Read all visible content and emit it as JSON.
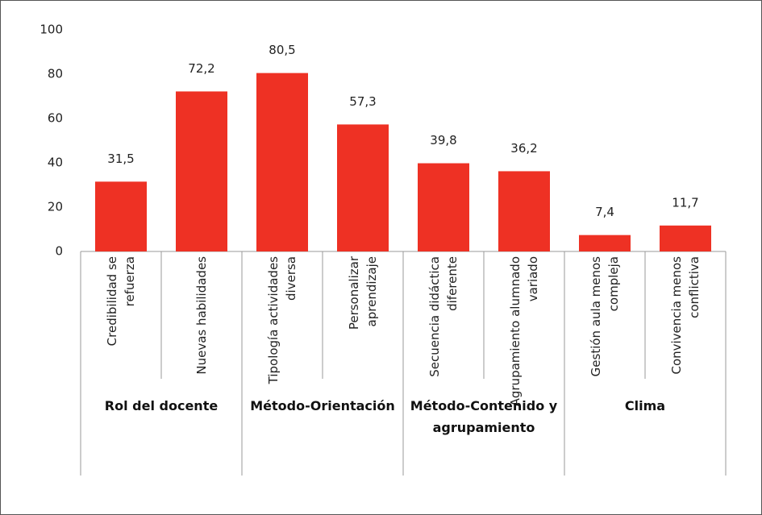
{
  "chart_data": {
    "type": "bar",
    "categories": [
      "Credibilidad se\nrefuerza",
      "Nuevas habilidades",
      "Tipología actividades\ndiversa",
      "Personalizar\naprendizaje",
      "Secuencia didáctica\ndiferente",
      "Agrupamiento alumnado\nvariado",
      "Gestión aula menos\ncompleja",
      "Convivencia menos\nconflictiva"
    ],
    "values": [
      31.5,
      72.2,
      80.5,
      57.3,
      39.8,
      36.2,
      7.4,
      11.7
    ],
    "value_labels": [
      "31,5",
      "72,2",
      "80,5",
      "57,3",
      "39,8",
      "36,2",
      "7,4",
      "11,7"
    ],
    "groups": [
      {
        "name": "Rol del docente",
        "size": 2
      },
      {
        "name": "Método-Orientación",
        "size": 2
      },
      {
        "name": "Método-Contenido y\nagrupamiento",
        "size": 2
      },
      {
        "name": "Clima",
        "size": 2
      }
    ],
    "color": "#ee3124",
    "ylim": [
      0,
      100
    ],
    "yticks": [
      0,
      20,
      40,
      60,
      80,
      100
    ],
    "grid": false
  }
}
